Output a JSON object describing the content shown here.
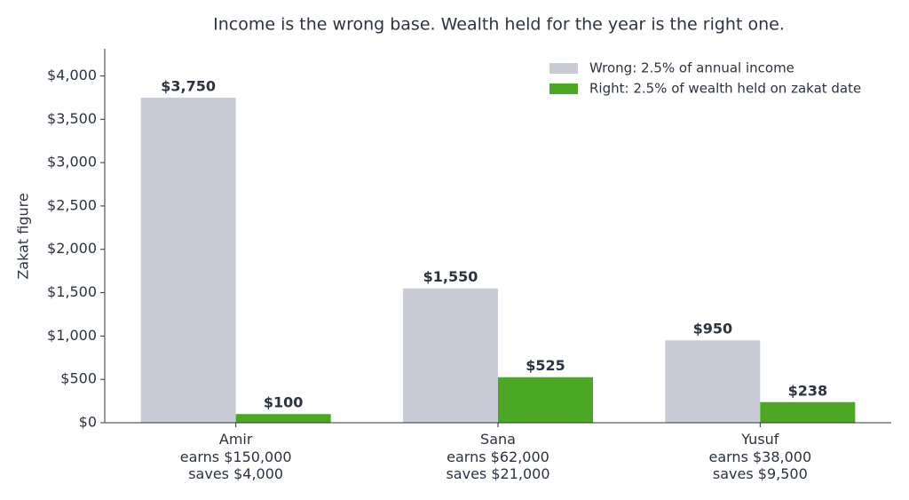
{
  "chart_data": {
    "type": "bar",
    "title": "Income is the wrong base. Wealth held for the year is the right one.",
    "y_label": "Zakat figure",
    "categories": [
      "Amir\nearns $150,000\nsaves $4,000",
      "Sana\nearns $62,000\nsaves $21,000",
      "Yusuf\nearns $38,000\nsaves $9,500"
    ],
    "series": [
      {
        "name": "Wrong: 2.5% of annual income",
        "color": "#c9ccd6",
        "values": [
          3750,
          1550,
          950
        ],
        "value_labels": [
          "$3,750",
          "$1,550",
          "$950"
        ]
      },
      {
        "name": "Right: 2.5% of wealth held on zakat date",
        "color": "#4ca822",
        "values": [
          100,
          525,
          238
        ],
        "value_labels": [
          "$100",
          "$525",
          "$238"
        ]
      }
    ],
    "ylim": [
      0,
      4312
    ],
    "yticks": [
      {
        "value": 0,
        "label": "$0"
      },
      {
        "value": 500,
        "label": "$500"
      },
      {
        "value": 1000,
        "label": "$1,000"
      },
      {
        "value": 1500,
        "label": "$1,500"
      },
      {
        "value": 2000,
        "label": "$2,000"
      },
      {
        "value": 2500,
        "label": "$2,500"
      },
      {
        "value": 3000,
        "label": "$3,000"
      },
      {
        "value": 3500,
        "label": "$3,500"
      },
      {
        "value": 4000,
        "label": "$4,000"
      }
    ],
    "legend": "upper right"
  }
}
